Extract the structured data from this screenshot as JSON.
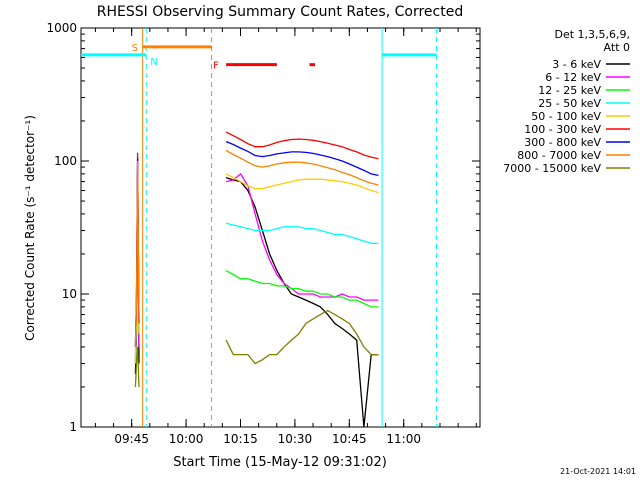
{
  "chart_data": {
    "type": "line",
    "title": "RHESSI Observing Summary Count Rates, Corrected",
    "xlabel": "Start Time (15-May-12 09:31:02)",
    "ylabel": "Corrected Count Rate (s⁻¹ detector⁻¹)",
    "y_scale": "log",
    "ylim": [
      1,
      1000
    ],
    "xlim_minutes": [
      0,
      110
    ],
    "x_ticks": [
      {
        "label": "09:45",
        "minute": 13.97
      },
      {
        "label": "10:00",
        "minute": 28.97
      },
      {
        "label": "10:15",
        "minute": 43.97
      },
      {
        "label": "10:30",
        "minute": 58.97
      },
      {
        "label": "10:45",
        "minute": 73.97
      },
      {
        "label": "11:00",
        "minute": 88.97
      }
    ],
    "y_ticks": [
      {
        "label": "1",
        "value": 1
      },
      {
        "label": "10",
        "value": 10
      },
      {
        "label": "100",
        "value": 100
      },
      {
        "label": "1000",
        "value": 1000
      }
    ],
    "legend_header": [
      "Det 1,3,5,6,9,",
      "Att 0"
    ],
    "legend_position": "top-right",
    "series": [
      {
        "name": "3 - 6 keV",
        "color": "#000000",
        "segments": [
          {
            "x": [
              15.0,
              15.3,
              15.6,
              16.0
            ],
            "y": [
              2.5,
              5.0,
              80,
              3.0
            ]
          },
          {
            "x": [
              40,
              42,
              44,
              46,
              48,
              50,
              52,
              54,
              56,
              58,
              60,
              62,
              64,
              66,
              68,
              70,
              72,
              74,
              76,
              78,
              80,
              82
            ],
            "y": [
              75,
              72,
              70,
              60,
              45,
              30,
              20,
              15,
              12,
              10,
              9.5,
              9,
              8.5,
              8,
              7,
              6,
              5.5,
              5,
              4.5,
              1,
              3.5,
              3.5
            ]
          }
        ]
      },
      {
        "name": "6 - 12 keV",
        "color": "#ff00ff",
        "segments": [
          {
            "x": [
              15.0,
              15.3,
              15.6,
              16.0
            ],
            "y": [
              3,
              8,
              85,
              4
            ]
          },
          {
            "x": [
              40,
              42,
              44,
              46,
              48,
              50,
              52,
              54,
              56,
              58,
              60,
              62,
              64,
              66,
              68,
              70,
              72,
              74,
              76,
              78,
              80,
              82
            ],
            "y": [
              70,
              72,
              80,
              65,
              40,
              25,
              18,
              14,
              12,
              11,
              10,
              10,
              10,
              9.5,
              9.5,
              9.5,
              10,
              9.5,
              9.5,
              9,
              9,
              9
            ]
          }
        ]
      },
      {
        "name": "12 - 25 keV",
        "color": "#00ff00",
        "segments": [
          {
            "x": [
              15.0,
              15.3,
              15.6,
              16.0
            ],
            "y": [
              3,
              6,
              60,
              5
            ]
          },
          {
            "x": [
              40,
              42,
              44,
              46,
              48,
              50,
              52,
              54,
              56,
              58,
              60,
              62,
              64,
              66,
              68,
              70,
              72,
              74,
              76,
              78,
              80,
              82
            ],
            "y": [
              15,
              14,
              13,
              13,
              12.5,
              12,
              12,
              11.5,
              11.5,
              11,
              11,
              10.5,
              10.5,
              10,
              10,
              9.5,
              9.5,
              9,
              9,
              8.5,
              8,
              8
            ]
          }
        ]
      },
      {
        "name": "25 - 50 keV",
        "color": "#00ffff",
        "segments": [
          {
            "x": [
              15.0,
              15.3,
              15.6,
              16.0
            ],
            "y": [
              3,
              6,
              70,
              5
            ]
          },
          {
            "x": [
              40,
              42,
              44,
              46,
              48,
              50,
              52,
              54,
              56,
              58,
              60,
              62,
              64,
              66,
              68,
              70,
              72,
              74,
              76,
              78,
              80,
              82
            ],
            "y": [
              34,
              33,
              32,
              31,
              30,
              30,
              30,
              31,
              32,
              32,
              32,
              31,
              31,
              30,
              29,
              28,
              28,
              27,
              26,
              25,
              24,
              24
            ]
          }
        ]
      },
      {
        "name": "50 - 100 keV",
        "color": "#ffcc00",
        "segments": [
          {
            "x": [
              15.0,
              15.3,
              15.6,
              16.0
            ],
            "y": [
              3,
              7,
              75,
              5
            ]
          },
          {
            "x": [
              40,
              42,
              44,
              46,
              48,
              50,
              52,
              54,
              56,
              58,
              60,
              62,
              64,
              66,
              68,
              70,
              72,
              74,
              76,
              78,
              80,
              82
            ],
            "y": [
              80,
              75,
              70,
              65,
              62,
              62,
              64,
              66,
              68,
              70,
              72,
              73,
              73,
              73,
              72,
              71,
              70,
              68,
              66,
              63,
              60,
              58
            ]
          }
        ]
      },
      {
        "name": "100 - 300 keV",
        "color": "#ff0000",
        "segments": [
          {
            "x": [
              15.0,
              15.3,
              15.6,
              16.0
            ],
            "y": [
              4,
              10,
              115,
              6
            ]
          },
          {
            "x": [
              40,
              42,
              44,
              46,
              48,
              50,
              52,
              54,
              56,
              58,
              60,
              62,
              64,
              66,
              68,
              70,
              72,
              74,
              76,
              78,
              80,
              82
            ],
            "y": [
              165,
              155,
              145,
              135,
              128,
              128,
              132,
              138,
              142,
              145,
              146,
              145,
              143,
              140,
              136,
              132,
              128,
              122,
              117,
              111,
              107,
              104
            ]
          }
        ]
      },
      {
        "name": "300 - 800 keV",
        "color": "#0000ff",
        "segments": [
          {
            "x": [
              15.0,
              15.3,
              15.6,
              16.0
            ],
            "y": [
              4,
              9,
              105,
              6
            ]
          },
          {
            "x": [
              40,
              42,
              44,
              46,
              48,
              50,
              52,
              54,
              56,
              58,
              60,
              62,
              64,
              66,
              68,
              70,
              72,
              74,
              76,
              78,
              80,
              82
            ],
            "y": [
              140,
              133,
              125,
              118,
              110,
              108,
              110,
              113,
              115,
              117,
              117,
              116,
              114,
              111,
              108,
              104,
              100,
              95,
              90,
              85,
              80,
              78
            ]
          }
        ]
      },
      {
        "name": "800 - 7000 keV",
        "color": "#ff8000",
        "segments": [
          {
            "x": [
              15.0,
              15.3,
              15.6,
              16.0
            ],
            "y": [
              4,
              9,
              100,
              6
            ]
          },
          {
            "x": [
              40,
              42,
              44,
              46,
              48,
              50,
              52,
              54,
              56,
              58,
              60,
              62,
              64,
              66,
              68,
              70,
              72,
              74,
              76,
              78,
              80,
              82
            ],
            "y": [
              120,
              112,
              105,
              98,
              92,
              90,
              92,
              95,
              97,
              98,
              98,
              97,
              95,
              92,
              89,
              86,
              82,
              79,
              75,
              71,
              68,
              66
            ]
          }
        ]
      },
      {
        "name": "7000 - 15000 keV",
        "color": "#808000",
        "segments": [
          {
            "x": [
              15.0,
              15.3,
              15.6,
              16.0
            ],
            "y": [
              2,
              3,
              4,
              2
            ]
          },
          {
            "x": [
              40,
              42,
              44,
              46,
              48,
              50,
              52,
              54,
              56,
              58,
              60,
              62,
              64,
              66,
              68,
              70,
              72,
              74,
              76,
              78,
              80,
              82
            ],
            "y": [
              4.5,
              3.5,
              3.5,
              3.5,
              3.0,
              3.2,
              3.5,
              3.5,
              4.0,
              4.5,
              5.0,
              6.0,
              6.5,
              7.0,
              7.5,
              7.0,
              6.5,
              6.0,
              5.0,
              4.0,
              3.5,
              3.5
            ]
          }
        ]
      }
    ],
    "status_bars": {
      "level": 650,
      "saa": {
        "letter": "S",
        "color": "#ff8000",
        "start": 17.0,
        "end": 36.0
      },
      "night": {
        "letter": "N",
        "color": "#00ffff",
        "intervals": [
          [
            0,
            18.0
          ],
          [
            83.0,
            98.0
          ]
        ]
      },
      "flare": {
        "letter": "F",
        "color": "#ff0000",
        "level": 530,
        "intervals": [
          [
            40.0,
            54.0
          ],
          [
            63.0,
            64.5
          ]
        ]
      }
    },
    "markers": [
      {
        "minute": 17.0,
        "color": "#ff8000",
        "style": "solid"
      },
      {
        "minute": 18.0,
        "color": "#00ffff",
        "style": "dashed"
      },
      {
        "minute": 36.0,
        "color": "#ff8000",
        "style": "dashed"
      },
      {
        "minute": 83.0,
        "color": "#00ffff",
        "style": "solid"
      },
      {
        "minute": 98.0,
        "color": "#00ffff",
        "style": "dashed"
      }
    ]
  },
  "footer": {
    "timestamp": "21-Oct-2021 14:01"
  }
}
